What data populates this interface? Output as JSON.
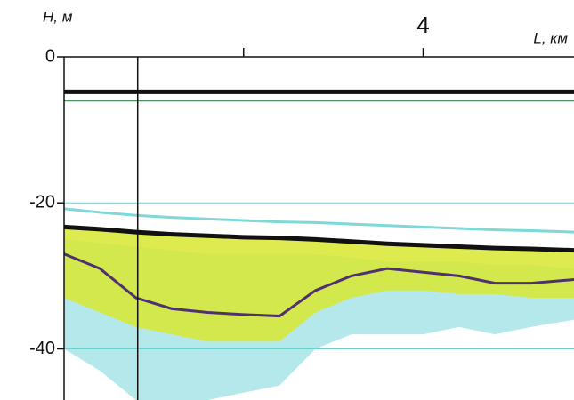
{
  "chart_data": {
    "type": "line",
    "y_label": "H, м",
    "x_label": "L, км",
    "xlim": [
      2,
      4.84
    ],
    "ylim": [
      -47,
      0
    ],
    "yticks": [
      0,
      -20,
      -40
    ],
    "xticks": [
      {
        "value": 3,
        "label": null
      },
      4
    ],
    "grid": true,
    "grid_color": "#6fcfcf",
    "marker_x": 2.41,
    "x": [
      2.0,
      2.2,
      2.4,
      2.6,
      2.8,
      3.0,
      3.2,
      3.4,
      3.6,
      3.8,
      4.0,
      4.2,
      4.4,
      4.6,
      4.84
    ],
    "areas": [
      {
        "color": "#a8e4e8",
        "upper": [
          -25,
          -25.5,
          -26,
          -26.5,
          -27,
          -27,
          -27,
          -27,
          -27.5,
          -28,
          -28,
          -28,
          -28.5,
          -28.5,
          -29
        ],
        "lower": [
          -40,
          -43,
          -47,
          -47,
          -47,
          -46,
          -45,
          -40,
          -38,
          -38,
          -38,
          -37,
          -38,
          -37,
          -36
        ]
      },
      {
        "color": "#d8e830",
        "upper": [
          -23.3,
          -23.6,
          -24,
          -24.3,
          -24.5,
          -24.7,
          -24.8,
          -25,
          -25.3,
          -25.6,
          -25.8,
          -26,
          -26.2,
          -26.3,
          -26.5
        ],
        "lower": [
          -33,
          -35,
          -37,
          -38,
          -39,
          -39,
          -39,
          -35,
          -33,
          -32,
          -32,
          -32.5,
          -32.5,
          -33,
          -33
        ]
      }
    ],
    "series": [
      {
        "color": "#111111",
        "width": 5,
        "values": [
          -4.8,
          -4.8,
          -4.8,
          -4.8,
          -4.8,
          -4.8,
          -4.8,
          -4.8,
          -4.8,
          -4.8,
          -4.8,
          -4.8,
          -4.8,
          -4.8,
          -4.8
        ]
      },
      {
        "color": "#3a9a5a",
        "width": 2,
        "values": [
          -6,
          -6,
          -6,
          -6,
          -6,
          -6,
          -6,
          -6,
          -6,
          -6,
          -6,
          -6,
          -6,
          -6,
          -6
        ]
      },
      {
        "color": "#7fd8d8",
        "width": 3,
        "values": [
          -20.8,
          -21.3,
          -21.7,
          -22,
          -22.2,
          -22.4,
          -22.6,
          -22.7,
          -22.9,
          -23.1,
          -23.3,
          -23.5,
          -23.7,
          -23.8,
          -24
        ]
      },
      {
        "color": "#111111",
        "width": 5,
        "values": [
          -23.3,
          -23.6,
          -24,
          -24.3,
          -24.5,
          -24.7,
          -24.8,
          -25,
          -25.3,
          -25.6,
          -25.8,
          -26,
          -26.2,
          -26.3,
          -26.5
        ]
      },
      {
        "color": "#503070",
        "width": 3,
        "values": [
          -27,
          -29,
          -33,
          -34.5,
          -35,
          -35.3,
          -35.5,
          -32,
          -30,
          -29,
          -29.5,
          -30,
          -31,
          -31,
          -30.5
        ]
      }
    ]
  }
}
